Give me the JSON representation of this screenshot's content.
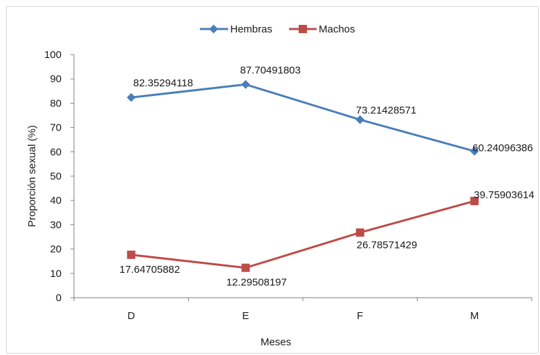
{
  "chart_data": {
    "type": "line",
    "title": "",
    "xlabel": "Meses",
    "ylabel": "Proporción sexual (%)",
    "categories": [
      "D",
      "E",
      "F",
      "M"
    ],
    "ylim": [
      0,
      100
    ],
    "yticks": [
      0,
      10,
      20,
      30,
      40,
      50,
      60,
      70,
      80,
      90,
      100
    ],
    "grid": false,
    "legend_position": "top",
    "series": [
      {
        "name": "Hembras",
        "color": "#4a7ebb",
        "marker": "diamond",
        "values": [
          82.35294118,
          87.70491803,
          73.21428571,
          60.24096386
        ],
        "labels": [
          "82.35294118",
          "87.70491803",
          "73.21428571",
          "60.24096386"
        ]
      },
      {
        "name": "Machos",
        "color": "#be4b48",
        "marker": "square",
        "values": [
          17.64705882,
          12.29508197,
          26.78571429,
          39.75903614
        ],
        "labels": [
          "17.64705882",
          "12.29508197",
          "26.78571429",
          "39.75903614"
        ]
      }
    ]
  }
}
